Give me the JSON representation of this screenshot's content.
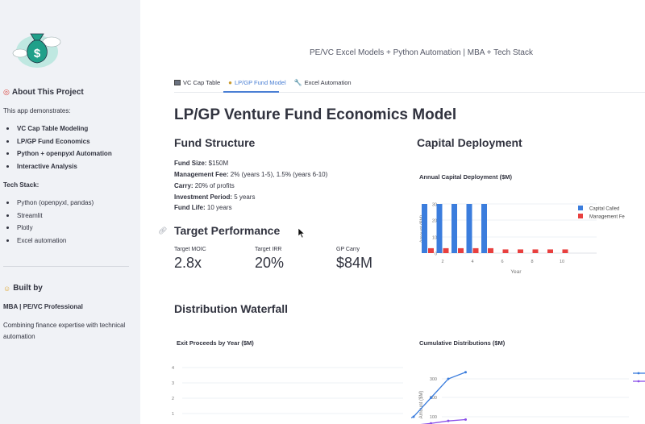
{
  "sidebar": {
    "logo_icon": "money-bag-icon",
    "about_heading": "About This Project",
    "about_icon": "target-icon",
    "intro": "This app demonstrates:",
    "features": [
      "VC Cap Table Modeling",
      "LP/GP Fund Economics",
      "Python + openpyxl Automation",
      "Interactive Analysis"
    ],
    "tech_heading": "Tech Stack:",
    "tech": [
      "Python (openpyxl, pandas)",
      "Streamlit",
      "Plotly",
      "Excel automation"
    ],
    "built_heading": "Built by",
    "built_icon": "person-icon",
    "built_role": "MBA | PE/VC Professional",
    "built_desc_1": "Combining finance expertise with technical",
    "built_desc_2": "automation"
  },
  "header": {
    "subtitle": "PE/VC Excel Models + Python Automation | MBA + Tech Stack"
  },
  "tabs": [
    {
      "label": "VC Cap Table",
      "icon": "computer-icon",
      "active": false
    },
    {
      "label": "LP/GP Fund Model",
      "icon": "money-bag-icon",
      "active": true
    },
    {
      "label": "Excel Automation",
      "icon": "wrench-icon",
      "active": false
    }
  ],
  "main": {
    "title": "LP/GP Venture Fund Economics Model",
    "fund_structure": {
      "heading": "Fund Structure",
      "items": [
        {
          "label": "Fund Size:",
          "value": " $150M"
        },
        {
          "label": "Management Fee:",
          "value": " 2% (years 1-5), 1.5% (years 6-10)"
        },
        {
          "label": "Carry:",
          "value": " 20% of profits"
        },
        {
          "label": "Investment Period:",
          "value": " 5 years"
        },
        {
          "label": "Fund Life:",
          "value": " 10 years"
        }
      ]
    },
    "target_performance": {
      "heading": "Target Performance",
      "metrics": [
        {
          "label": "Target MOIC",
          "value": "2.8x"
        },
        {
          "label": "Target IRR",
          "value": "20%"
        },
        {
          "label": "GP Carry",
          "value": "$84M"
        }
      ]
    },
    "capital_deployment": {
      "heading": "Capital Deployment"
    },
    "distribution_waterfall": {
      "heading": "Distribution Waterfall"
    }
  },
  "chart_data": [
    {
      "type": "bar",
      "title": "Annual Capital Deployment ($M)",
      "xlabel": "Year",
      "ylabel": "Amount ($M)",
      "categories": [
        1,
        2,
        3,
        4,
        5,
        6,
        7,
        8,
        9,
        10
      ],
      "x_ticks": [
        "2",
        "4",
        "6",
        "8",
        "10"
      ],
      "y_ticks": [
        "0",
        "10",
        "20",
        "30"
      ],
      "ylim": [
        0,
        31
      ],
      "grid": true,
      "legend_position": "right",
      "series": [
        {
          "name": "Capital Called",
          "color": "#3b7ddd",
          "values": [
            30,
            30,
            30,
            30,
            30,
            0,
            0,
            0,
            0,
            0
          ]
        },
        {
          "name": "Management Fe",
          "color": "#e8403f",
          "values": [
            3,
            3,
            3,
            3,
            3,
            2.25,
            2.25,
            2.25,
            2.25,
            2.25
          ]
        }
      ]
    },
    {
      "type": "bar",
      "title": "Exit Proceeds by Year ($M)",
      "xlabel": "",
      "ylabel": "Proceeds ($M)",
      "y_ticks": [
        "1",
        "2",
        "3",
        "4"
      ],
      "grid": true,
      "series": []
    },
    {
      "type": "line",
      "title": "Cumulative Distributions ($M)",
      "xlabel": "",
      "ylabel": "Amount ($M)",
      "y_ticks": [
        "100",
        "200",
        "300"
      ],
      "grid": true,
      "legend_position": "right",
      "x": [
        6,
        7,
        8,
        9,
        10
      ],
      "series": [
        {
          "name": "",
          "color": "#3b7ddd",
          "values": [
            60,
            100,
            200,
            300,
            335
          ]
        },
        {
          "name": "",
          "color": "#8a4fe8",
          "values": [
            null,
            55,
            65,
            78,
            85
          ]
        }
      ]
    }
  ]
}
